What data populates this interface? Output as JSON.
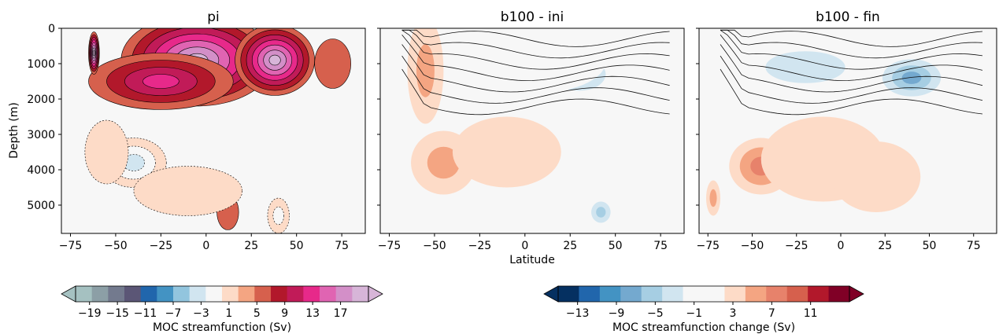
{
  "chart_data": [
    {
      "type": "heatmap",
      "id": "pi",
      "title": "pi",
      "xlabel": "",
      "ylabel": "Depth (m)",
      "xlim": [
        -80,
        88
      ],
      "ylim": [
        5800,
        0
      ],
      "x_ticks": [
        -75,
        -50,
        -25,
        0,
        25,
        50,
        75
      ],
      "y_ticks": [
        0,
        1000,
        2000,
        3000,
        4000,
        5000
      ],
      "features": [
        {
          "lat": -5,
          "depth": 900,
          "value": 15,
          "lat_w": 42,
          "depth_h": 1300
        },
        {
          "lat": 38,
          "depth": 900,
          "value": 15,
          "lat_w": 22,
          "depth_h": 1000
        },
        {
          "lat": -25,
          "depth": 1500,
          "value": 8,
          "lat_w": 40,
          "depth_h": 800
        },
        {
          "lat": -62,
          "depth": 700,
          "value": 17,
          "lat_w": 3,
          "depth_h": 600
        },
        {
          "lat": -40,
          "depth": 3800,
          "value": -7,
          "lat_w": 18,
          "depth_h": 700
        },
        {
          "lat": -55,
          "depth": 3500,
          "value": -3,
          "lat_w": 12,
          "depth_h": 900
        },
        {
          "lat": 70,
          "depth": 1000,
          "value": 3,
          "lat_w": 10,
          "depth_h": 700
        },
        {
          "lat": 40,
          "depth": 5300,
          "value": -5,
          "lat_w": 6,
          "depth_h": 500
        },
        {
          "lat": 12,
          "depth": 5200,
          "value": 3,
          "lat_w": 6,
          "depth_h": 500
        },
        {
          "lat": -10,
          "depth": 4600,
          "value": -3,
          "lat_w": 30,
          "depth_h": 700
        }
      ]
    },
    {
      "type": "heatmap",
      "id": "b100-ini",
      "title": "b100 - ini",
      "xlabel": "Latitude",
      "ylabel": "",
      "xlim": [
        -80,
        88
      ],
      "ylim": [
        5800,
        0
      ],
      "x_ticks": [
        -75,
        -50,
        -25,
        0,
        25,
        50,
        75
      ],
      "y_ticks": [
        0,
        1000,
        2000,
        3000,
        4000,
        5000
      ],
      "features": [
        {
          "lat": 30,
          "depth": 1300,
          "value": -7,
          "lat_w": 22,
          "depth_h": 700
        },
        {
          "lat": 10,
          "depth": 900,
          "value": -3,
          "lat_w": 35,
          "depth_h": 900
        },
        {
          "lat": -55,
          "depth": 1200,
          "value": 4,
          "lat_w": 10,
          "depth_h": 1500
        },
        {
          "lat": -45,
          "depth": 3800,
          "value": 4,
          "lat_w": 18,
          "depth_h": 900
        },
        {
          "lat": -10,
          "depth": 3500,
          "value": 2,
          "lat_w": 30,
          "depth_h": 1000
        },
        {
          "lat": 42,
          "depth": 5200,
          "value": -7,
          "lat_w": 8,
          "depth_h": 450
        },
        {
          "lat": 20,
          "depth": 5000,
          "value": -2,
          "lat_w": 10,
          "depth_h": 400
        }
      ]
    },
    {
      "type": "heatmap",
      "id": "b100-fin",
      "title": "b100 - fin",
      "xlabel": "",
      "ylabel": "",
      "xlim": [
        -80,
        88
      ],
      "ylim": [
        5800,
        0
      ],
      "x_ticks": [
        -75,
        -50,
        -25,
        0,
        25,
        50,
        75
      ],
      "y_ticks": [
        0,
        1000,
        2000,
        3000,
        4000,
        5000
      ],
      "features": [
        {
          "lat": 40,
          "depth": 1400,
          "value": -9,
          "lat_w": 22,
          "depth_h": 700
        },
        {
          "lat": -20,
          "depth": 1100,
          "value": -5,
          "lat_w": 45,
          "depth_h": 900
        },
        {
          "lat": -45,
          "depth": 3900,
          "value": 7,
          "lat_w": 18,
          "depth_h": 800
        },
        {
          "lat": -10,
          "depth": 3700,
          "value": 3,
          "lat_w": 35,
          "depth_h": 1200
        },
        {
          "lat": 20,
          "depth": 4200,
          "value": 2,
          "lat_w": 25,
          "depth_h": 1000
        },
        {
          "lat": -72,
          "depth": 4800,
          "value": 5,
          "lat_w": 4,
          "depth_h": 500
        }
      ]
    }
  ],
  "colorbars": [
    {
      "label": "MOC streamfunction (Sv)",
      "ticks": [
        "−19",
        "−15",
        "−11",
        "−7",
        "−3",
        "1",
        "5",
        "9",
        "13",
        "17"
      ],
      "colors": [
        "#a5c1c1",
        "#8c9fa6",
        "#737a8e",
        "#5b5676",
        "#2166ac",
        "#4393c3",
        "#92c5de",
        "#d1e5f0",
        "#f7f7f7",
        "#fddbc7",
        "#f4a582",
        "#d6604d",
        "#b2182b",
        "#c11b58",
        "#e7298a",
        "#e064b2",
        "#d38fc8",
        "#d7b5d8"
      ]
    },
    {
      "label": "MOC streamfunction change (Sv)",
      "ticks": [
        "−13",
        "−9",
        "−5",
        "−1",
        "3",
        "7",
        "11"
      ],
      "colors": [
        "#053061",
        "#2166ac",
        "#4393c3",
        "#74a9cf",
        "#a6cee3",
        "#d1e5f0",
        "#f7f7f7",
        "#f7f7f7",
        "#fddbc7",
        "#f4a582",
        "#e7826b",
        "#d6604d",
        "#b2182b",
        "#800026"
      ]
    }
  ]
}
